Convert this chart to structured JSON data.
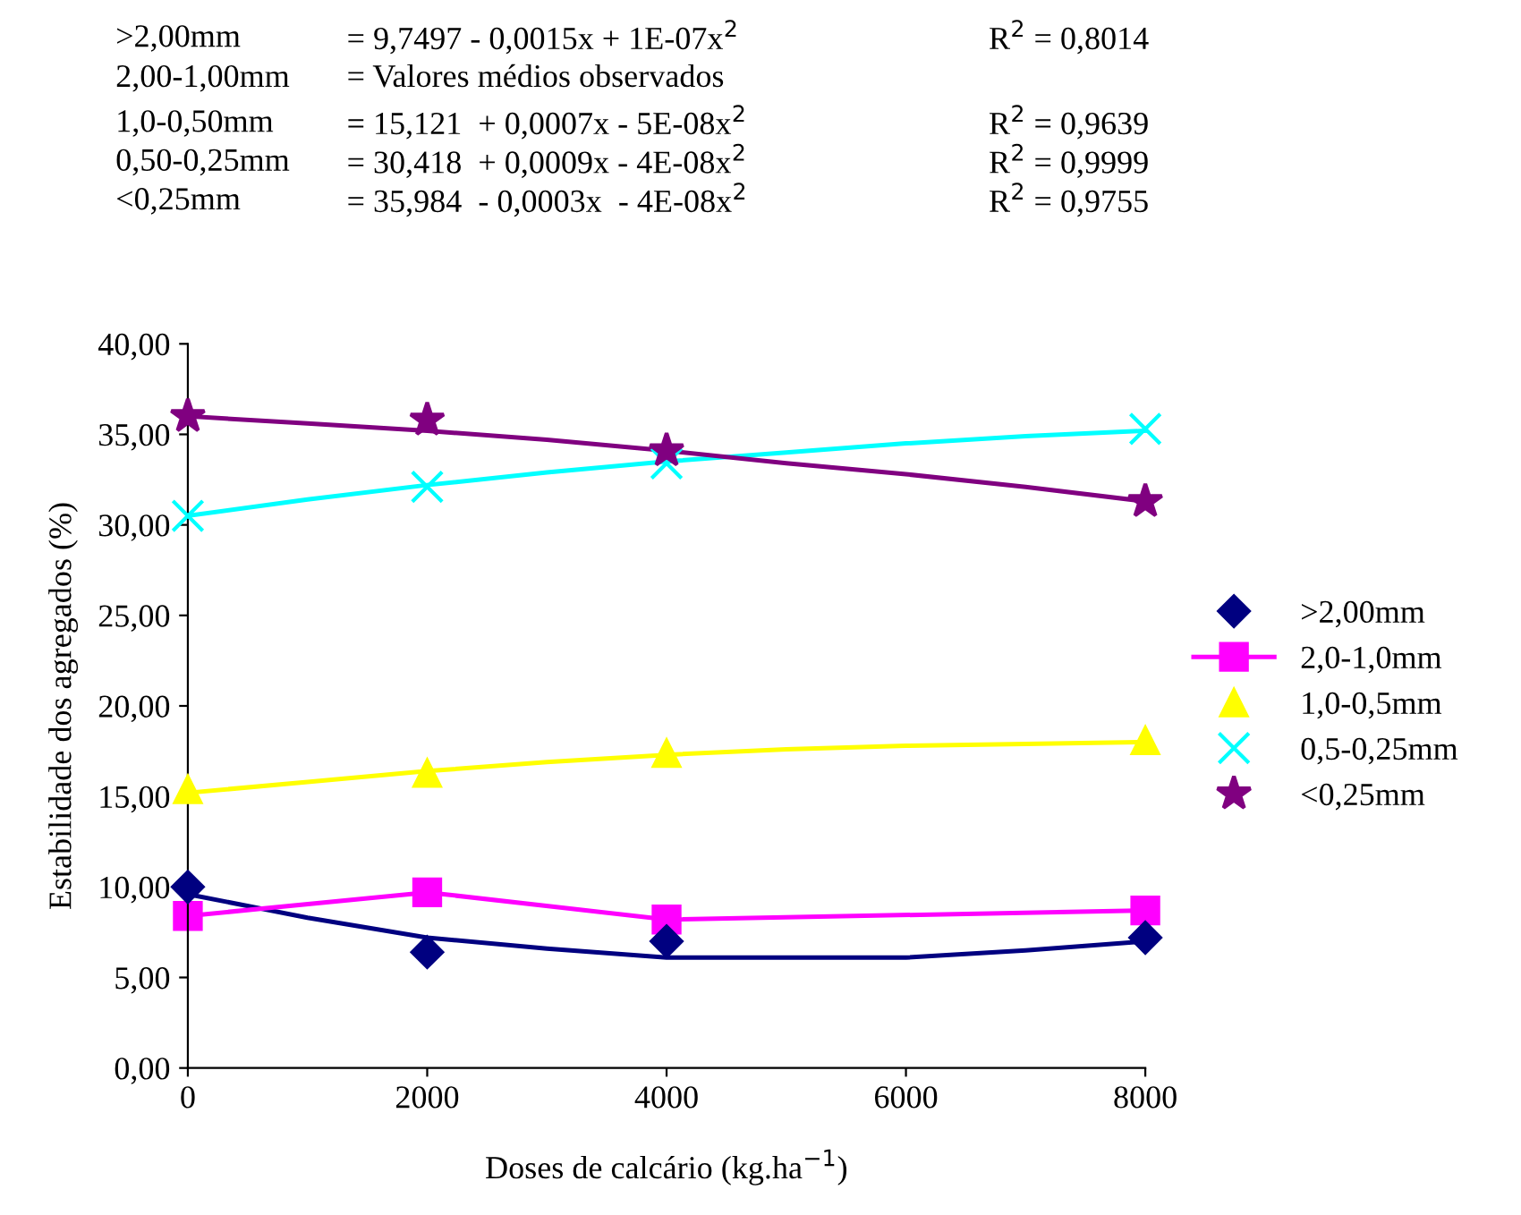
{
  "chart_data": {
    "type": "scatter",
    "xlabel": "Doses de calcário (kg.ha$^{−1}$)",
    "ylabel": "Estabilidade dos agregados (%)",
    "x": [
      0,
      2000,
      4000,
      8000
    ],
    "xlim": [
      0,
      8000
    ],
    "xticks": [
      0,
      2000,
      4000,
      6000,
      8000
    ],
    "ylim": [
      0,
      40
    ],
    "yticks": [
      {
        "value": 0,
        "label": "0,00"
      },
      {
        "value": 5,
        "label": "5,00"
      },
      {
        "value": 10,
        "label": "10,00"
      },
      {
        "value": 15,
        "label": "15,00"
      },
      {
        "value": 20,
        "label": "20,00"
      },
      {
        "value": 25,
        "label": "25,00"
      },
      {
        "value": 30,
        "label": "30,00"
      },
      {
        "value": 35,
        "label": "35,00"
      },
      {
        "value": 40,
        "label": "40,00"
      }
    ],
    "grid": false,
    "legend": "right",
    "series": [
      {
        "type": "line",
        "color": "#000080",
        "marker": "none",
        "x": [
          0,
          1000,
          2000,
          3000,
          4000,
          5000,
          6000,
          7000,
          8000
        ],
        "values": [
          9.6,
          8.3,
          7.2,
          6.6,
          6.1,
          6.1,
          6.1,
          6.5,
          7.0
        ]
      },
      {
        "type": "line",
        "color": "#ffff00",
        "marker": "none",
        "x": [
          0,
          1000,
          2000,
          3000,
          4000,
          5000,
          6000,
          7000,
          8000
        ],
        "values": [
          15.2,
          15.8,
          16.4,
          16.9,
          17.3,
          17.6,
          17.8,
          17.9,
          18.0
        ]
      },
      {
        "type": "line",
        "color": "#00ffff",
        "marker": "none",
        "x": [
          0,
          1000,
          2000,
          3000,
          4000,
          5000,
          6000,
          7000,
          8000
        ],
        "values": [
          30.5,
          31.4,
          32.2,
          32.9,
          33.5,
          34.0,
          34.5,
          34.9,
          35.2
        ]
      },
      {
        "type": "line",
        "color": "#800080",
        "marker": "none",
        "x": [
          0,
          1000,
          2000,
          3000,
          4000,
          5000,
          6000,
          7000,
          8000
        ],
        "values": [
          36.0,
          35.6,
          35.2,
          34.7,
          34.1,
          33.4,
          32.8,
          32.1,
          31.3
        ]
      },
      {
        "name": ">2,00mm",
        "color": "#000080",
        "marker": "diamond",
        "values": [
          10.0,
          6.4,
          7.0,
          7.2
        ]
      },
      {
        "name": "2,0-1,0mm",
        "type": "line",
        "color": "#ff00ff",
        "marker": "square",
        "values": [
          8.4,
          9.7,
          8.2,
          8.7
        ]
      },
      {
        "name": "1,0-0,5mm",
        "color": "#ffff00",
        "marker": "triangle",
        "values": [
          15.4,
          16.3,
          17.4,
          18.1
        ]
      },
      {
        "name": "0,5-0,25mm",
        "color": "#00ffff",
        "marker": "cross",
        "values": [
          30.5,
          32.1,
          33.4,
          35.3
        ]
      },
      {
        "name": "<0,25mm",
        "color": "#800080",
        "marker": "star",
        "values": [
          36.0,
          35.8,
          34.1,
          31.3
        ]
      }
    ],
    "annotations": [
      ">2,00mm",
      "2,00-1,00mm",
      "1,0-0,50mm",
      "0,50-0,25mm",
      "<0,25mm",
      "= 9,7497 - 0,0015x + 1E-07x$^{2}$",
      "= Valores médios observados",
      "= 15,121  + 0,0007x - 5E-08x$^{2}$",
      "= 30,418  + 0,0009x - 4E-08x$^{2}$",
      "= 35,984  - 0,0003x  - 4E-08x$^{2}$",
      "R$^{2}$ = 0,8014",
      "R$^{2}$ = 0,9639",
      "R$^{2}$ = 0,9999",
      "R$^{2}$ = 0,9755"
    ]
  }
}
